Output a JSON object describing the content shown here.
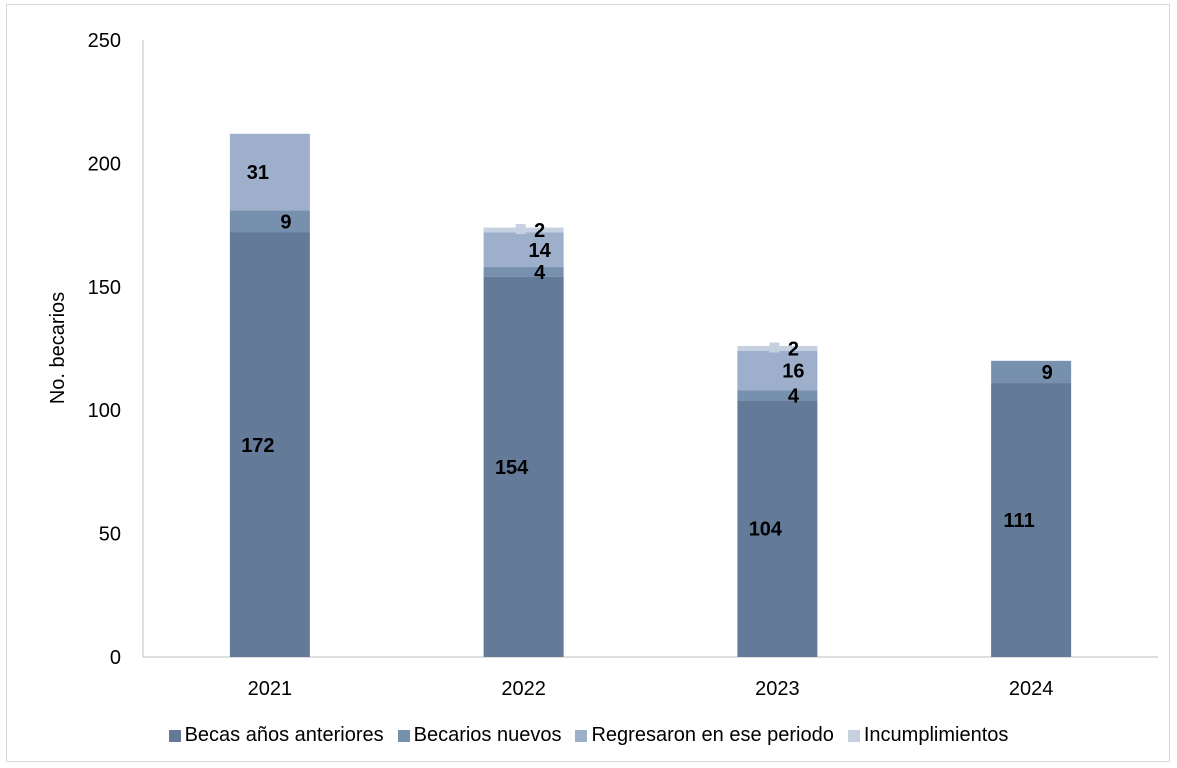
{
  "chart_data": {
    "type": "bar",
    "stacked": true,
    "ylabel": "No. becarios",
    "xlabel": "",
    "ylim": [
      0,
      250
    ],
    "yticks": [
      0,
      50,
      100,
      150,
      200,
      250
    ],
    "grid": false,
    "legend_position": "bottom",
    "categories": [
      "2021",
      "2022",
      "2023",
      "2024"
    ],
    "series": [
      {
        "name": "Becas años anteriores",
        "color": "#637a99",
        "values": [
          172,
          154,
          104,
          111
        ]
      },
      {
        "name": "Becarios nuevos",
        "color": "#7790ad",
        "values": [
          9,
          4,
          4,
          9
        ]
      },
      {
        "name": "Regresaron en ese periodo",
        "color": "#9dafca",
        "values": [
          31,
          14,
          16,
          0
        ]
      },
      {
        "name": "Incumplimientos",
        "color": "#c5d0e0",
        "values": [
          0,
          2,
          2,
          0
        ]
      }
    ]
  }
}
